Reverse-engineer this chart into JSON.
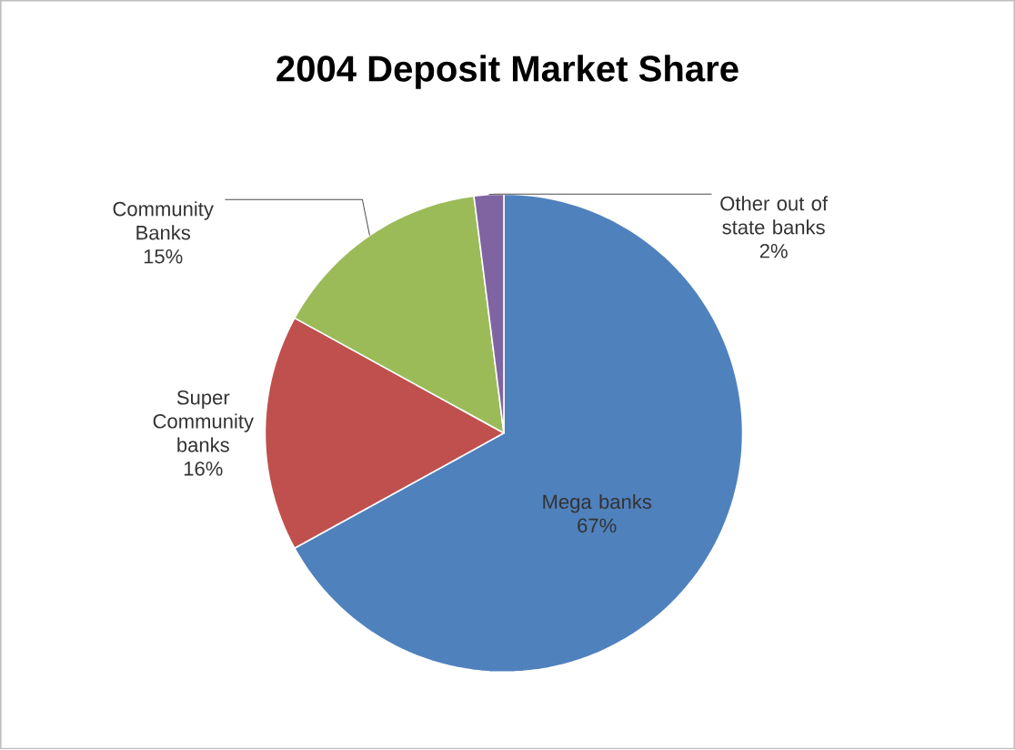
{
  "chart_data": {
    "type": "pie",
    "title": "2004 Deposit Market Share",
    "categories": [
      "Mega banks",
      "Super Community banks",
      "Community Banks",
      "Other out of state banks"
    ],
    "values": [
      67,
      16,
      15,
      2
    ],
    "value_labels": [
      "67%",
      "16%",
      "15%",
      "2%"
    ],
    "colors": [
      "#4f81bd",
      "#c0504d",
      "#9bbb59",
      "#8064a2"
    ]
  }
}
